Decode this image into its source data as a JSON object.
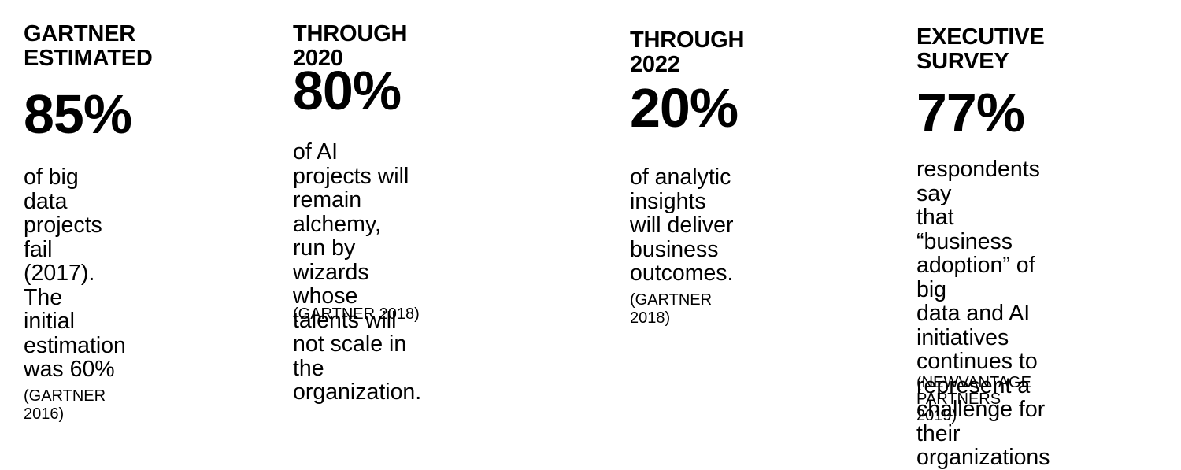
{
  "stats": [
    {
      "heading": "GARTNER\nESTIMATED",
      "percent": "85%",
      "description": "of big data projects\nfail (2017). The\ninitial estimation\nwas 60% ",
      "source_inline": "(GARTNER",
      "source_rest": "2016)"
    },
    {
      "heading": "THROUGH 2020",
      "percent": "80%",
      "description": "of AI projects will\nremain alchemy,\nrun by wizards\nwhose talents will\nnot scale in the\norganization.",
      "source": "(GARTNER 2018)"
    },
    {
      "heading": "THROUGH 2022",
      "percent": "20%",
      "description": "of analytic insights\nwill deliver\nbusiness\noutcomes. ",
      "source_inline": "(GARTNER",
      "source_rest": "2018)"
    },
    {
      "heading": "EXECUTIVE\nSURVEY",
      "percent": "77%",
      "description": "respondents say\nthat “business\nadoption” of big\ndata and AI\ninitiatives\ncontinues to\nrepresent a\nchallenge for their\norganizations",
      "source": "(NEWVANTAGE\nPARTNERS 2019)"
    }
  ]
}
